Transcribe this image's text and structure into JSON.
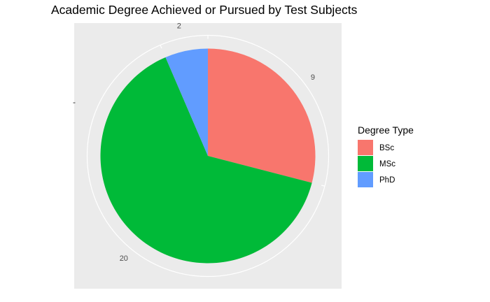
{
  "chart_data": {
    "type": "pie",
    "title": "Academic Degree Achieved or Pursued by Test Subjects",
    "legend": {
      "title": "Degree Type",
      "position": "right"
    },
    "y_axis_tick": "-",
    "slices": [
      {
        "label": "BSc",
        "value": 9,
        "color": "#F8766D"
      },
      {
        "label": "MSc",
        "value": 20,
        "color": "#00BA38"
      },
      {
        "label": "PhD",
        "value": 2,
        "color": "#619CFF"
      }
    ],
    "tick_labels": [
      "2",
      "9",
      "20"
    ]
  }
}
